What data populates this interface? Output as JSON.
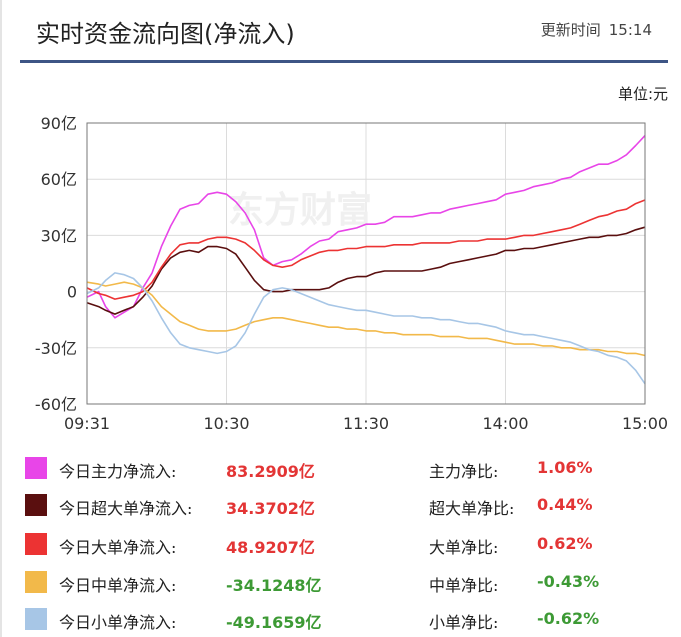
{
  "header": {
    "title": "实时资金流向图(净流入)",
    "update_label": "更新时间",
    "update_time": "15:14"
  },
  "unit_label": "单位:元",
  "watermark": "东方财富",
  "chart_data": {
    "type": "line",
    "title": "实时资金流向图(净流入)",
    "xlabel": "",
    "ylabel": "单位:元",
    "y_unit": "亿",
    "ylim": [
      -60,
      90
    ],
    "y_ticks": [
      90,
      60,
      30,
      0,
      -30,
      -60
    ],
    "y_tick_labels": [
      "90亿",
      "60亿",
      "30亿",
      "0",
      "-30亿",
      "-60亿"
    ],
    "x_ticks": [
      "09:31",
      "10:30",
      "11:30",
      "14:00",
      "15:00"
    ],
    "x_tick_positions": [
      0,
      60,
      120,
      180,
      240
    ],
    "grid": true,
    "series": [
      {
        "name": "今日主力净流入",
        "color": "#e845e8",
        "x": [
          0,
          5,
          8,
          12,
          16,
          20,
          24,
          28,
          32,
          36,
          40,
          44,
          48,
          52,
          56,
          60,
          64,
          68,
          72,
          76,
          80,
          84,
          88,
          92,
          96,
          100,
          104,
          108,
          112,
          116,
          120,
          124,
          128,
          132,
          136,
          140,
          144,
          148,
          152,
          156,
          160,
          164,
          168,
          172,
          176,
          180,
          184,
          188,
          192,
          196,
          200,
          204,
          208,
          212,
          216,
          220,
          224,
          228,
          232,
          236,
          240
        ],
        "y": [
          -3,
          0,
          -8,
          -14,
          -11,
          -8,
          2,
          10,
          24,
          35,
          44,
          46,
          47,
          52,
          53,
          52,
          48,
          42,
          33,
          18,
          14,
          16,
          17,
          20,
          24,
          27,
          28,
          32,
          33,
          34,
          36,
          36,
          37,
          40,
          40,
          40,
          41,
          42,
          42,
          44,
          45,
          46,
          47,
          48,
          49,
          52,
          53,
          54,
          56,
          57,
          58,
          60,
          61,
          64,
          66,
          68,
          68,
          70,
          73,
          78,
          83.3
        ]
      },
      {
        "name": "今日超大单净流入",
        "color": "#5a0f0f",
        "x": [
          0,
          5,
          8,
          12,
          16,
          20,
          24,
          28,
          32,
          36,
          40,
          44,
          48,
          52,
          56,
          60,
          64,
          68,
          72,
          76,
          80,
          84,
          88,
          92,
          96,
          100,
          104,
          108,
          112,
          116,
          120,
          124,
          128,
          132,
          136,
          140,
          144,
          148,
          152,
          156,
          160,
          164,
          168,
          172,
          176,
          180,
          184,
          188,
          192,
          196,
          200,
          204,
          208,
          212,
          216,
          220,
          224,
          228,
          232,
          236,
          240
        ],
        "y": [
          -6,
          -8,
          -10,
          -12,
          -10,
          -8,
          -3,
          3,
          12,
          18,
          21,
          22,
          21,
          24,
          24,
          23,
          20,
          13,
          6,
          1,
          0,
          0,
          1,
          1,
          1,
          1,
          2,
          5,
          7,
          8,
          8,
          10,
          11,
          11,
          11,
          11,
          11,
          12,
          13,
          15,
          16,
          17,
          18,
          19,
          20,
          22,
          22,
          23,
          23,
          24,
          25,
          26,
          27,
          28,
          29,
          29,
          30,
          30,
          31,
          33,
          34.4
        ]
      },
      {
        "name": "今日大单净流入",
        "color": "#ec3333",
        "x": [
          0,
          5,
          8,
          12,
          16,
          20,
          24,
          28,
          32,
          36,
          40,
          44,
          48,
          52,
          56,
          60,
          64,
          68,
          72,
          76,
          80,
          84,
          88,
          92,
          96,
          100,
          104,
          108,
          112,
          116,
          120,
          124,
          128,
          132,
          136,
          140,
          144,
          148,
          152,
          156,
          160,
          164,
          168,
          172,
          176,
          180,
          184,
          188,
          192,
          196,
          200,
          204,
          208,
          212,
          216,
          220,
          224,
          228,
          232,
          236,
          240
        ],
        "y": [
          2,
          -1,
          -2,
          -4,
          -3,
          -2,
          0,
          5,
          13,
          20,
          25,
          26,
          26,
          28,
          29,
          29,
          28,
          26,
          22,
          17,
          14,
          13,
          14,
          17,
          19,
          21,
          22,
          22,
          23,
          23,
          24,
          24,
          24,
          25,
          25,
          25,
          26,
          26,
          26,
          26,
          27,
          27,
          27,
          28,
          28,
          28,
          29,
          30,
          30,
          31,
          32,
          33,
          34,
          36,
          38,
          40,
          41,
          43,
          44,
          47,
          48.9
        ]
      },
      {
        "name": "今日中单净流入",
        "color": "#f2b94a",
        "x": [
          0,
          5,
          8,
          12,
          16,
          20,
          24,
          28,
          32,
          36,
          40,
          44,
          48,
          52,
          56,
          60,
          64,
          68,
          72,
          76,
          80,
          84,
          88,
          92,
          96,
          100,
          104,
          108,
          112,
          116,
          120,
          124,
          128,
          132,
          136,
          140,
          144,
          148,
          152,
          156,
          160,
          164,
          168,
          172,
          176,
          180,
          184,
          188,
          192,
          196,
          200,
          204,
          208,
          212,
          216,
          220,
          224,
          228,
          232,
          236,
          240
        ],
        "y": [
          5,
          4,
          3,
          4,
          5,
          4,
          2,
          -2,
          -8,
          -12,
          -16,
          -18,
          -20,
          -21,
          -21,
          -21,
          -20,
          -18,
          -16,
          -15,
          -14,
          -14,
          -15,
          -16,
          -17,
          -18,
          -19,
          -19,
          -20,
          -20,
          -21,
          -21,
          -22,
          -22,
          -23,
          -23,
          -23,
          -23,
          -24,
          -24,
          -24,
          -25,
          -25,
          -25,
          -26,
          -27,
          -28,
          -28,
          -28,
          -29,
          -29,
          -30,
          -30,
          -31,
          -31,
          -31,
          -32,
          -32,
          -33,
          -33,
          -34.1
        ]
      },
      {
        "name": "今日小单净流入",
        "color": "#a7c6e6",
        "x": [
          0,
          5,
          8,
          12,
          16,
          20,
          24,
          28,
          32,
          36,
          40,
          44,
          48,
          52,
          56,
          60,
          64,
          68,
          72,
          76,
          80,
          84,
          88,
          92,
          96,
          100,
          104,
          108,
          112,
          116,
          120,
          124,
          128,
          132,
          136,
          140,
          144,
          148,
          152,
          156,
          160,
          164,
          168,
          172,
          176,
          180,
          184,
          188,
          192,
          196,
          200,
          204,
          208,
          212,
          216,
          220,
          224,
          228,
          232,
          236,
          240
        ],
        "y": [
          -1,
          2,
          6,
          10,
          9,
          7,
          2,
          -5,
          -14,
          -22,
          -28,
          -30,
          -31,
          -32,
          -33,
          -32,
          -29,
          -22,
          -12,
          -3,
          1,
          2,
          1,
          -1,
          -3,
          -5,
          -7,
          -8,
          -9,
          -10,
          -10,
          -11,
          -12,
          -13,
          -13,
          -13,
          -14,
          -14,
          -15,
          -15,
          -16,
          -17,
          -17,
          -18,
          -19,
          -21,
          -22,
          -23,
          -23,
          -24,
          -25,
          -26,
          -27,
          -29,
          -31,
          -32,
          -34,
          -35,
          -37,
          -42,
          -49.2
        ]
      }
    ]
  },
  "legend": [
    {
      "label": "今日主力净流入:",
      "value": "83.2909亿",
      "ratio_label": "主力净比:",
      "ratio": "1.06%",
      "color": "#e845e8",
      "sign": "pos"
    },
    {
      "label": "今日超大单净流入:",
      "value": "34.3702亿",
      "ratio_label": "超大单净比:",
      "ratio": "0.44%",
      "color": "#5a0f0f",
      "sign": "pos"
    },
    {
      "label": "今日大单净流入:",
      "value": "48.9207亿",
      "ratio_label": "大单净比:",
      "ratio": "0.62%",
      "color": "#ec3333",
      "sign": "pos"
    },
    {
      "label": "今日中单净流入:",
      "value": "-34.1248亿",
      "ratio_label": "中单净比:",
      "ratio": "-0.43%",
      "color": "#f2b94a",
      "sign": "neg"
    },
    {
      "label": "今日小单净流入:",
      "value": "-49.1659亿",
      "ratio_label": "小单净比:",
      "ratio": "-0.62%",
      "color": "#a7c6e6",
      "sign": "neg"
    }
  ]
}
